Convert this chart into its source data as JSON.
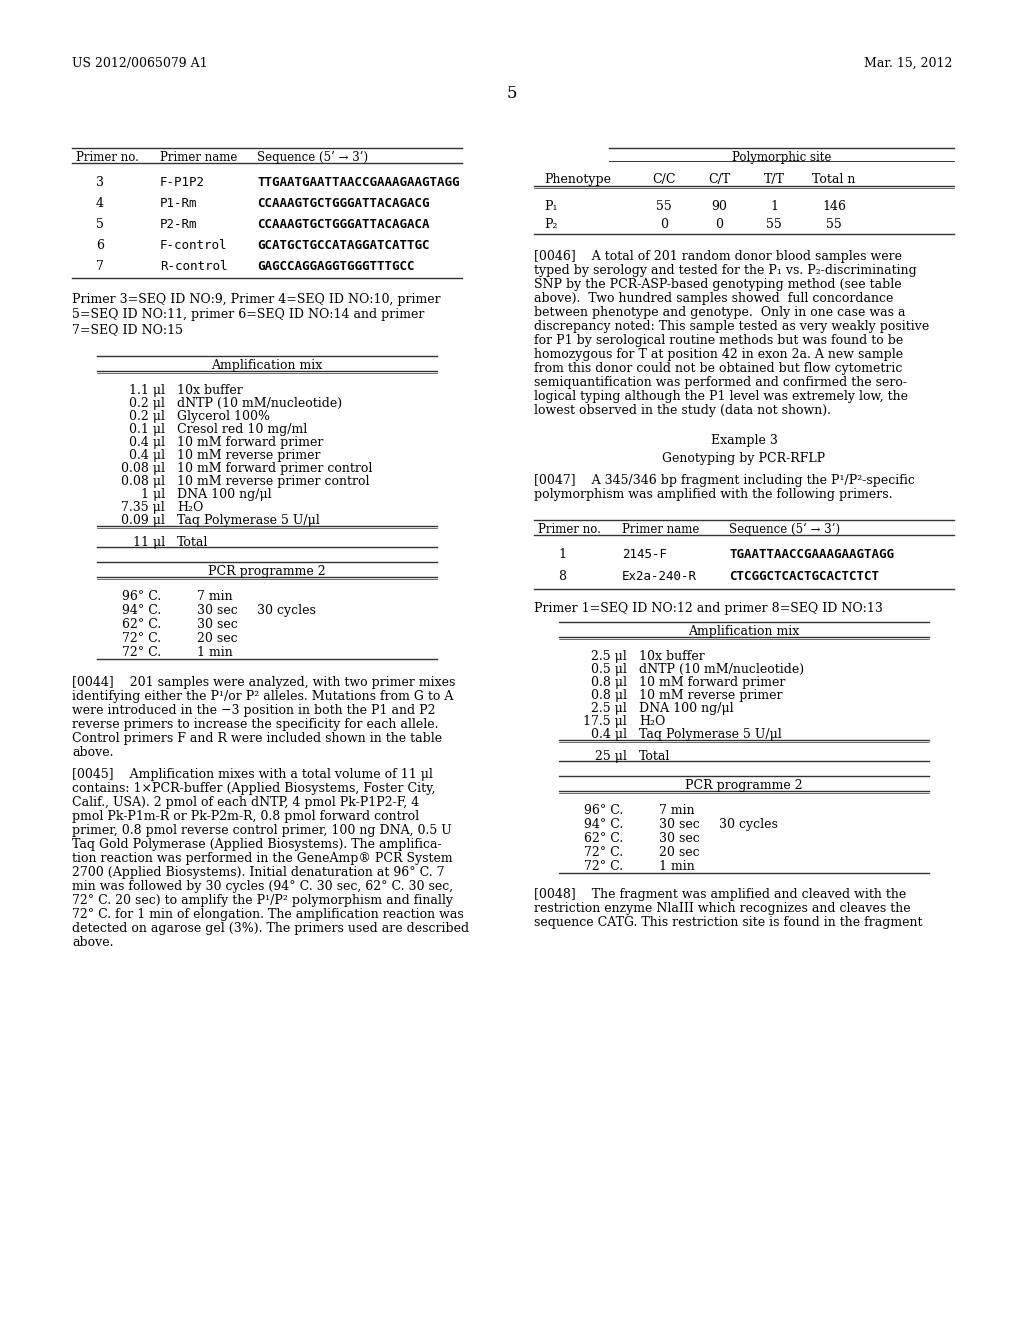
{
  "header_left": "US 2012/0065079 A1",
  "header_right": "Mar. 15, 2012",
  "page_number": "5",
  "bg_color": "#ffffff",
  "table1_rows": [
    [
      "3",
      "F-P1P2",
      "TTGAATGAATTAACCGAAAGAAGTAGG"
    ],
    [
      "4",
      "P1-Rm",
      "CCAAAGTGCTGGGATTACAGACG"
    ],
    [
      "5",
      "P2-Rm",
      "CCAAAGTGCTGGGATTACAGACA"
    ],
    [
      "6",
      "F-control",
      "GCATGCTGCCATAGGATCATTGC"
    ],
    [
      "7",
      "R-control",
      "GAGCCAGGAGGTGGGTTTGCC"
    ]
  ],
  "primer_note": "Primer 3=SEQ ID NO:9, Primer 4=SEQ ID NO:10, primer\n5=SEQ ID NO:11, primer 6=SEQ ID NO:14 and primer\n7=SEQ ID NO:15",
  "ampmix1_title": "Amplification mix",
  "ampmix1_rows": [
    [
      "1.1 μl",
      "10x buffer"
    ],
    [
      "0.2 μl",
      "dNTP (10 mM/nucleotide)"
    ],
    [
      "0.2 μl",
      "Glycerol 100%"
    ],
    [
      "0.1 μl",
      "Cresol red 10 mg/ml"
    ],
    [
      "0.4 μl",
      "10 mM forward primer"
    ],
    [
      "0.4 μl",
      "10 mM reverse primer"
    ],
    [
      "0.08 μl",
      "10 mM forward primer control"
    ],
    [
      "0.08 μl",
      "10 mM reverse primer control"
    ],
    [
      "1 μl",
      "DNA 100 ng/μl"
    ],
    [
      "7.35 μl",
      "H₂O"
    ],
    [
      "0.09 μl",
      "Taq Polymerase 5 U/μl"
    ]
  ],
  "ampmix1_total": [
    "11 μl",
    "Total"
  ],
  "pcr2_title": "PCR programme 2",
  "pcr2_rows": [
    [
      "96° C.",
      "7 min",
      ""
    ],
    [
      "94° C.",
      "30 sec",
      "30 cycles"
    ],
    [
      "62° C.",
      "30 sec",
      ""
    ],
    [
      "72° C.",
      "20 sec",
      ""
    ],
    [
      "72° C.",
      "1 min",
      ""
    ]
  ],
  "para44_lines": [
    "[0044]    201 samples were analyzed, with two primer mixes",
    "identifying either the P¹/or P² alleles. Mutations from G to A",
    "were introduced in the −3 position in both the P1 and P2",
    "reverse primers to increase the specificity for each allele.",
    "Control primers F and R were included shown in the table",
    "above."
  ],
  "para45_lines": [
    "[0045]    Amplification mixes with a total volume of 11 μl",
    "contains: 1×PCR-buffer (Applied Biosystems, Foster City,",
    "Calif., USA). 2 pmol of each dNTP, 4 pmol Pk-P1P2-F, 4",
    "pmol Pk-P1m-R or Pk-P2m-R, 0.8 pmol forward control",
    "primer, 0.8 pmol reverse control primer, 100 ng DNA, 0.5 U",
    "Taq Gold Polymerase (Applied Biosystems). The amplifica-",
    "tion reaction was performed in the GeneAmp® PCR System",
    "2700 (Applied Biosystems). Initial denaturation at 96° C. 7",
    "min was followed by 30 cycles (94° C. 30 sec, 62° C. 30 sec,",
    "72° C. 20 sec) to amplify the P¹/P² polymorphism and finally",
    "72° C. for 1 min of elongation. The amplification reaction was",
    "detected on agarose gel (3%). The primers used are described",
    "above."
  ],
  "poly_title": "Polymorphic site",
  "poly_header": [
    "Phenotype",
    "C/C",
    "C/T",
    "T/T",
    "Total n"
  ],
  "poly_rows": [
    [
      "P₁",
      "55",
      "90",
      "1",
      "146"
    ],
    [
      "P₂",
      "0",
      "0",
      "55",
      "55"
    ]
  ],
  "para46_lines": [
    "[0046]    A total of 201 random donor blood samples were",
    "typed by serology and tested for the P₁ vs. P₂-discriminating",
    "SNP by the PCR-ASP-based genotyping method (see table",
    "above).  Two hundred samples showed  full concordance",
    "between phenotype and genotype.  Only in one case was a",
    "discrepancy noted: This sample tested as very weakly positive",
    "for P1 by serological routine methods but was found to be",
    "homozygous for T at position 42 in exon 2a. A new sample",
    "from this donor could not be obtained but flow cytometric",
    "semiquantification was performed and confirmed the sero-",
    "logical typing although the P1 level was extremely low, the",
    "lowest observed in the study (data not shown)."
  ],
  "example3_title": "Example 3",
  "example3_subtitle": "Genotyping by PCR-RFLP",
  "para47_lines": [
    "[0047]    A 345/346 bp fragment including the P¹/P²-specific",
    "polymorphism was amplified with the following primers."
  ],
  "table3_rows": [
    [
      "1",
      "2145-F",
      "TGAATTAACCGAAAGAAGTAGG"
    ],
    [
      "8",
      "Ex2a-240-R",
      "CTCGGCTCACTGCACTCTCT"
    ]
  ],
  "primer_note3": "Primer 1=SEQ ID NO:12 and primer 8=SEQ ID NO:13",
  "ampmix2_title": "Amplification mix",
  "ampmix2_rows": [
    [
      "2.5 μl",
      "10x buffer"
    ],
    [
      "0.5 μl",
      "dNTP (10 mM/nucleotide)"
    ],
    [
      "0.8 μl",
      "10 mM forward primer"
    ],
    [
      "0.8 μl",
      "10 mM reverse primer"
    ],
    [
      "2.5 μl",
      "DNA 100 ng/μl"
    ],
    [
      "17.5 μl",
      "H₂O"
    ],
    [
      "0.4 μl",
      "Taq Polymerase 5 U/μl"
    ]
  ],
  "ampmix2_total": [
    "25 μl",
    "Total"
  ],
  "pcr3_title": "PCR programme 2",
  "pcr3_rows": [
    [
      "96° C.",
      "7 min",
      ""
    ],
    [
      "94° C.",
      "30 sec",
      "30 cycles"
    ],
    [
      "62° C.",
      "30 sec",
      ""
    ],
    [
      "72° C.",
      "20 sec",
      ""
    ],
    [
      "72° C.",
      "1 min",
      ""
    ]
  ],
  "para48_lines": [
    "[0048]    The fragment was amplified and cleaved with the",
    "restriction enzyme NlaIII which recognizes and cleaves the",
    "sequence CATG. This restriction site is found in the fragment"
  ]
}
